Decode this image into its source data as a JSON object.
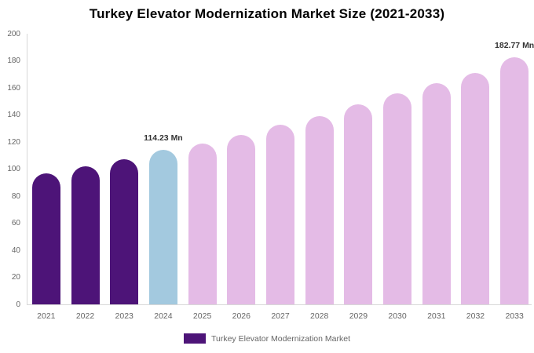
{
  "title": "Turkey Elevator Modernization Market Size (2021-2033)",
  "chart_data": {
    "type": "bar",
    "title": "Turkey Elevator Modernization Market Size (2021-2033)",
    "categories": [
      "2021",
      "2022",
      "2023",
      "2024",
      "2025",
      "2026",
      "2027",
      "2028",
      "2029",
      "2030",
      "2031",
      "2032",
      "2033"
    ],
    "values": [
      96.8,
      102.3,
      107.5,
      114.23,
      119.0,
      125.4,
      132.6,
      139.3,
      147.6,
      155.8,
      163.7,
      170.8,
      182.77
    ],
    "unit": "Mn",
    "data_labels": {
      "2024": "114.23 Mn",
      "2033": "182.77 Mn"
    },
    "bar_colors": [
      "#4D1478",
      "#4D1478",
      "#4D1478",
      "#A3C9DF",
      "#E4BBE6",
      "#E4BBE6",
      "#E4BBE6",
      "#E4BBE6",
      "#E4BBE6",
      "#E4BBE6",
      "#E4BBE6",
      "#E4BBE6",
      "#E4BBE6"
    ],
    "ylim": [
      0,
      200
    ],
    "ytick_step": 20,
    "yticks": [
      0,
      20,
      40,
      60,
      80,
      100,
      120,
      140,
      160,
      180,
      200
    ],
    "grid": false,
    "legend_position": "bottom",
    "xlabel": "",
    "ylabel": ""
  },
  "legend": {
    "label": "Turkey Elevator Modernization Market",
    "swatch_color": "#4D1478"
  },
  "colors": {
    "historical_bar": "#4D1478",
    "base_year_bar": "#A3C9DF",
    "forecast_bar": "#E4BBE6",
    "axis_line": "#D8D8D8",
    "tick_text": "#666666",
    "data_label_text": "#333333"
  }
}
